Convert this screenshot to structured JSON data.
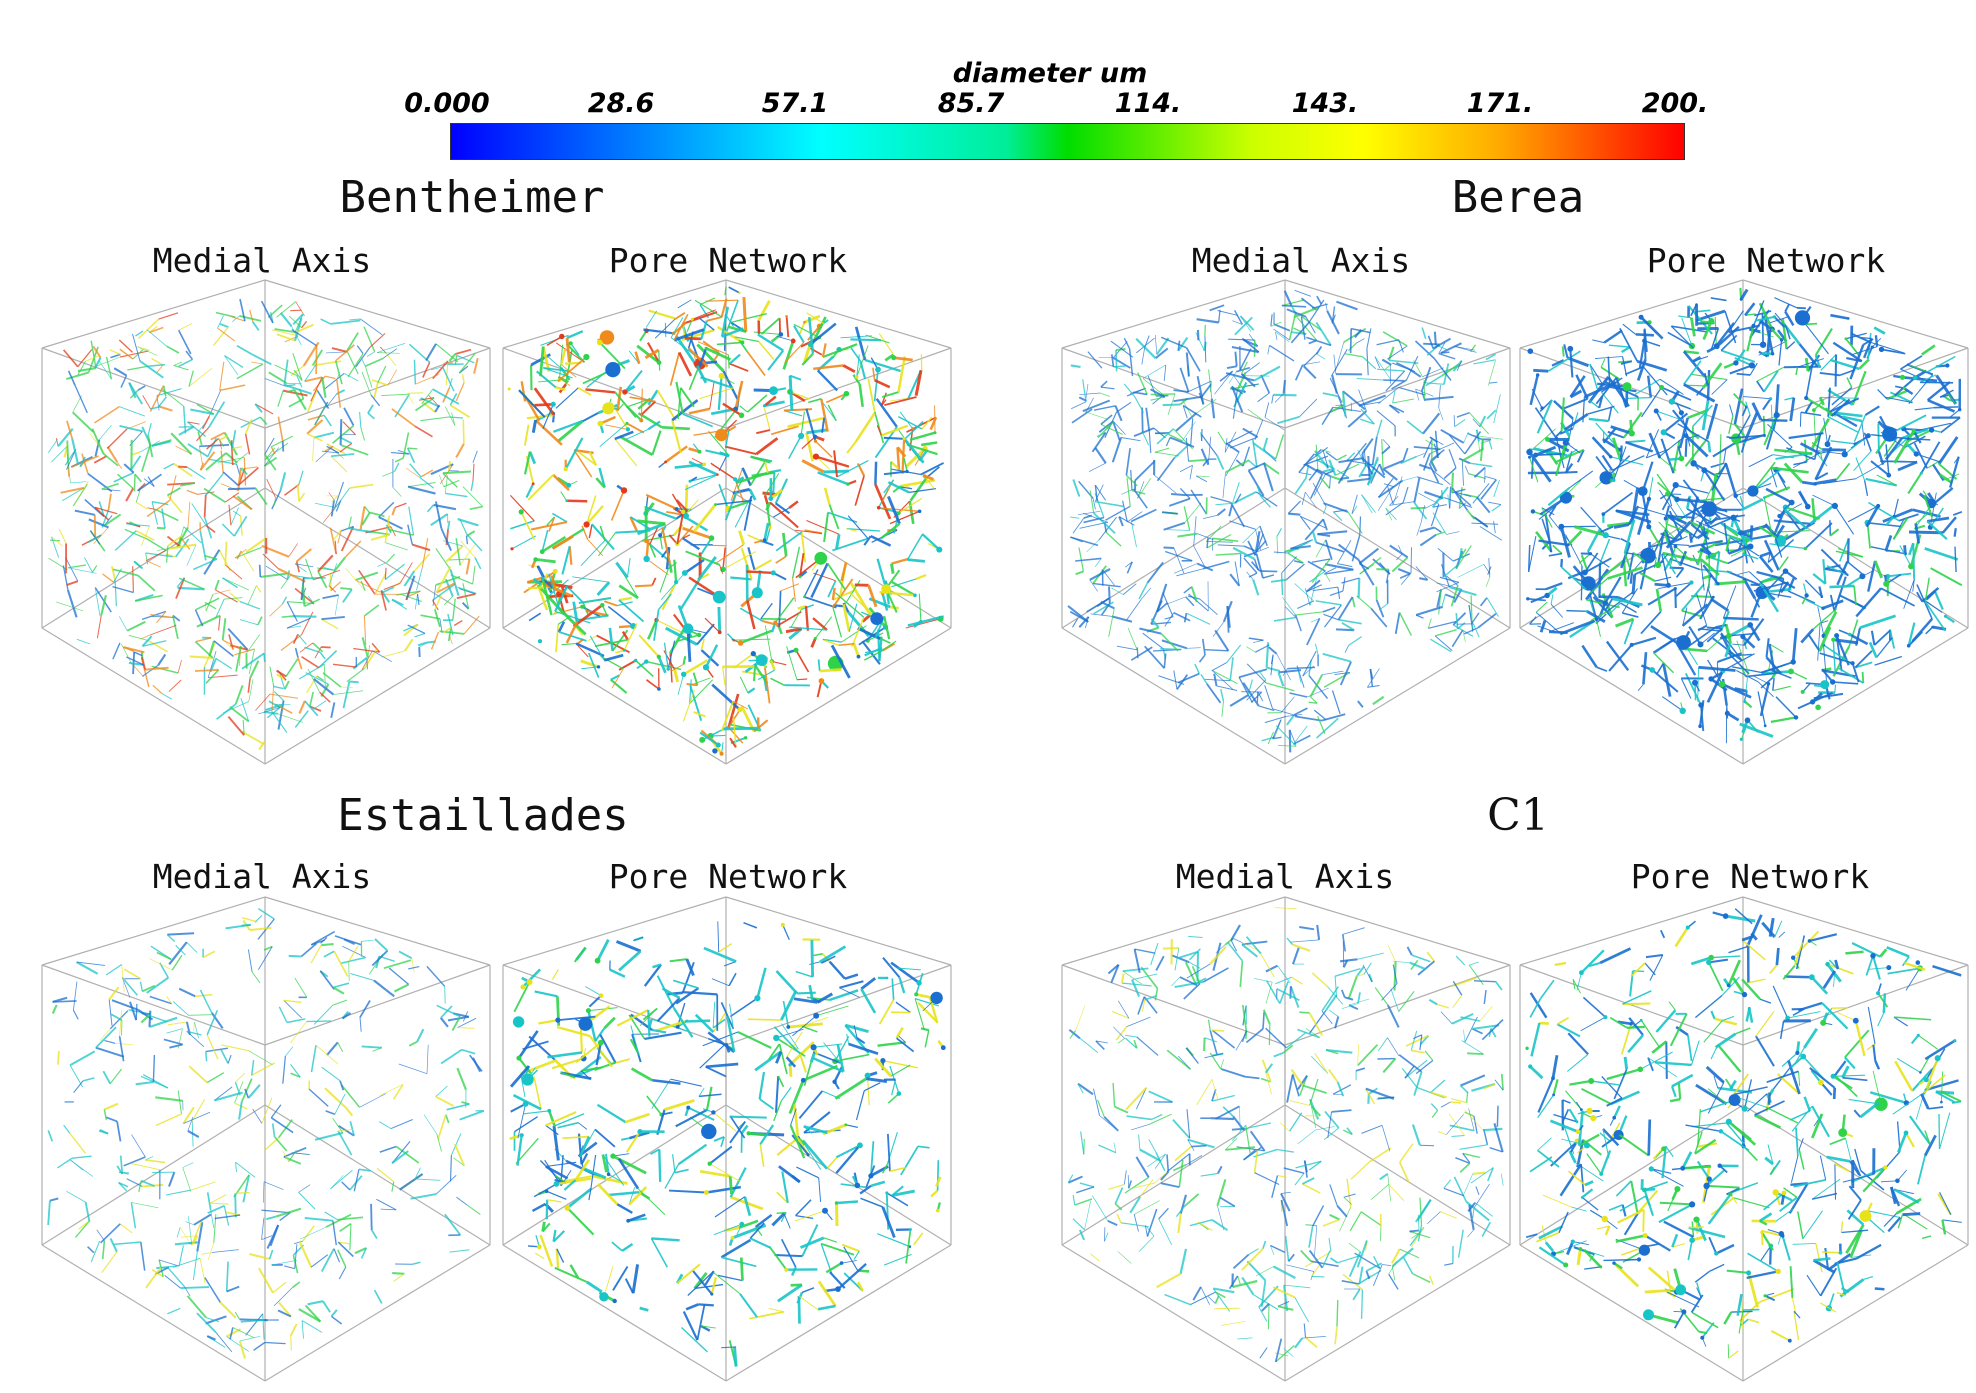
{
  "colorbar": {
    "title": "diameter um",
    "ticks": [
      "0.000",
      "28.6",
      "57.1",
      "85.7",
      "114.",
      "143.",
      "171.",
      "200."
    ],
    "min": 0,
    "max": 200
  },
  "panels": [
    {
      "rock": "Bentheimer",
      "medial_label": "Medial Axis",
      "pore_label": "Pore Network",
      "medial_density": 0.8,
      "pore_density": 0.75,
      "palette": "mixed"
    },
    {
      "rock": "Berea",
      "medial_label": "Medial Axis",
      "pore_label": "Pore Network",
      "medial_density": 0.9,
      "pore_density": 1.0,
      "palette": "blue"
    },
    {
      "rock": "Estaillades",
      "medial_label": "Medial Axis",
      "pore_label": "Pore Network",
      "medial_density": 0.3,
      "pore_density": 0.35,
      "palette": "cyan"
    },
    {
      "rock": "C1",
      "medial_label": "Medial Axis",
      "pore_label": "Pore Network",
      "medial_density": 0.45,
      "pore_density": 0.4,
      "palette": "cyan"
    }
  ],
  "colors": {
    "blue": "#1a6fd0",
    "cyan": "#18c4c8",
    "green": "#2fd34a",
    "yellow": "#e8e21a",
    "orange": "#f08a1a",
    "red": "#e23a1a",
    "edge": "#b0b0b0"
  }
}
